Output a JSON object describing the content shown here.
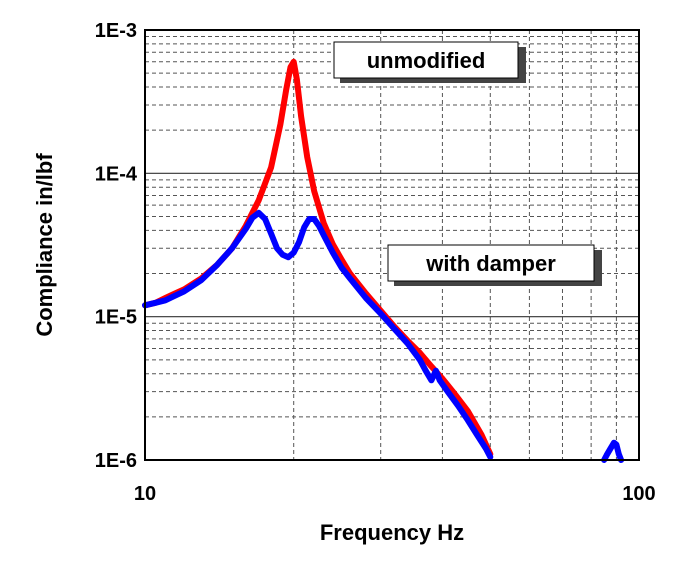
{
  "chart_data": {
    "type": "line",
    "title": "",
    "xlabel": "Frequency Hz",
    "ylabel": "Compliance in/lbf",
    "x_scale": "log",
    "y_scale": "log",
    "xlim": [
      10,
      100
    ],
    "ylim": [
      1e-06,
      0.001
    ],
    "x_tick_labels": [
      "10",
      "100"
    ],
    "y_tick_labels": [
      "1E-6",
      "1E-5",
      "1E-4",
      "1E-3"
    ],
    "grid": true,
    "annotations": [
      "unmodified",
      "with damper"
    ],
    "series": [
      {
        "name": "unmodified",
        "color": "#ff0000",
        "points": [
          [
            10.0,
            1.2e-05
          ],
          [
            10.5,
            1.25e-05
          ],
          [
            11.0,
            1.35e-05
          ],
          [
            11.5,
            1.45e-05
          ],
          [
            12.0,
            1.55e-05
          ],
          [
            13.0,
            1.85e-05
          ],
          [
            14.0,
            2.3e-05
          ],
          [
            15.0,
            3e-05
          ],
          [
            16.0,
            4.3e-05
          ],
          [
            17.0,
            6.5e-05
          ],
          [
            18.0,
            0.00011
          ],
          [
            18.8,
            0.00022
          ],
          [
            19.3,
            0.00038
          ],
          [
            19.7,
            0.00055
          ],
          [
            20.0,
            0.0006
          ],
          [
            20.3,
            0.00045
          ],
          [
            20.7,
            0.00025
          ],
          [
            21.3,
            0.00013
          ],
          [
            22.0,
            7.5e-05
          ],
          [
            23.0,
            4.5e-05
          ],
          [
            24.0,
            3.2e-05
          ],
          [
            25.0,
            2.5e-05
          ],
          [
            26.0,
            2e-05
          ],
          [
            28.0,
            1.45e-05
          ],
          [
            30.0,
            1.1e-05
          ],
          [
            32.0,
            8.5e-06
          ],
          [
            34.0,
            6.8e-06
          ],
          [
            36.0,
            5.6e-06
          ],
          [
            38.0,
            4.5e-06
          ],
          [
            40.0,
            3.7e-06
          ],
          [
            42.0,
            3e-06
          ],
          [
            45.0,
            2.2e-06
          ],
          [
            48.0,
            1.5e-06
          ],
          [
            50.0,
            1.1e-06
          ]
        ]
      },
      {
        "name": "with damper",
        "color": "#0000ff",
        "points": [
          [
            10.0,
            1.2e-05
          ],
          [
            10.5,
            1.25e-05
          ],
          [
            11.0,
            1.3e-05
          ],
          [
            11.5,
            1.4e-05
          ],
          [
            12.0,
            1.5e-05
          ],
          [
            13.0,
            1.8e-05
          ],
          [
            14.0,
            2.3e-05
          ],
          [
            15.0,
            3e-05
          ],
          [
            16.0,
            4.1e-05
          ],
          [
            16.5,
            4.9e-05
          ],
          [
            17.0,
            5.3e-05
          ],
          [
            17.5,
            4.8e-05
          ],
          [
            18.0,
            3.8e-05
          ],
          [
            18.5,
            3e-05
          ],
          [
            19.0,
            2.7e-05
          ],
          [
            19.5,
            2.6e-05
          ],
          [
            20.0,
            2.8e-05
          ],
          [
            20.5,
            3.3e-05
          ],
          [
            21.0,
            4.2e-05
          ],
          [
            21.5,
            4.8e-05
          ],
          [
            22.0,
            4.8e-05
          ],
          [
            22.5,
            4.3e-05
          ],
          [
            23.0,
            3.7e-05
          ],
          [
            24.0,
            2.8e-05
          ],
          [
            25.0,
            2.2e-05
          ],
          [
            26.0,
            1.85e-05
          ],
          [
            28.0,
            1.35e-05
          ],
          [
            30.0,
            1.05e-05
          ],
          [
            32.0,
            8.2e-06
          ],
          [
            34.0,
            6.5e-06
          ],
          [
            36.0,
            5e-06
          ],
          [
            37.0,
            4.2e-06
          ],
          [
            38.0,
            3.6e-06
          ],
          [
            38.8,
            4.2e-06
          ],
          [
            39.5,
            3.6e-06
          ],
          [
            41.0,
            3e-06
          ],
          [
            43.0,
            2.4e-06
          ],
          [
            45.0,
            1.9e-06
          ],
          [
            47.0,
            1.5e-06
          ],
          [
            49.0,
            1.2e-06
          ],
          [
            50.0,
            1.05e-06
          ]
        ]
      },
      {
        "name": "with damper",
        "color": "#0000ff",
        "points": [
          [
            85.0,
            1e-06
          ],
          [
            86.0,
            1.08e-06
          ],
          [
            87.5,
            1.2e-06
          ],
          [
            89.0,
            1.32e-06
          ],
          [
            90.0,
            1.28e-06
          ],
          [
            91.0,
            1.1e-06
          ],
          [
            92.0,
            1e-06
          ]
        ]
      }
    ]
  }
}
